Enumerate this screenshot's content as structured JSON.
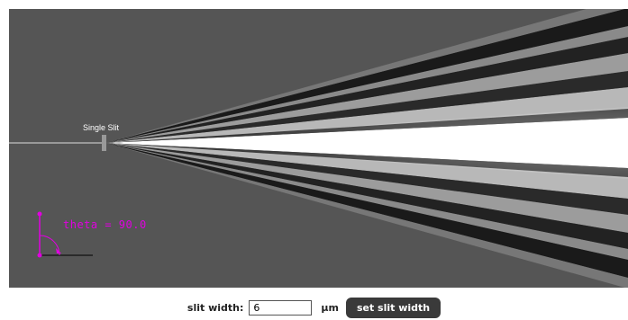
{
  "simulation": {
    "slit_label": "Single Slit",
    "theta_readout": "theta = 90.0"
  },
  "controls": {
    "slit_width_label": "slit width:",
    "slit_width_value": "6",
    "unit_label": "μm",
    "set_button_label": "set slit width"
  },
  "colors": {
    "background": "#555555",
    "pattern_bright": "#ffffff",
    "pattern_dark": "#111111",
    "angle_indicator": "#e000e0",
    "button_bg": "#3a3a3a"
  }
}
